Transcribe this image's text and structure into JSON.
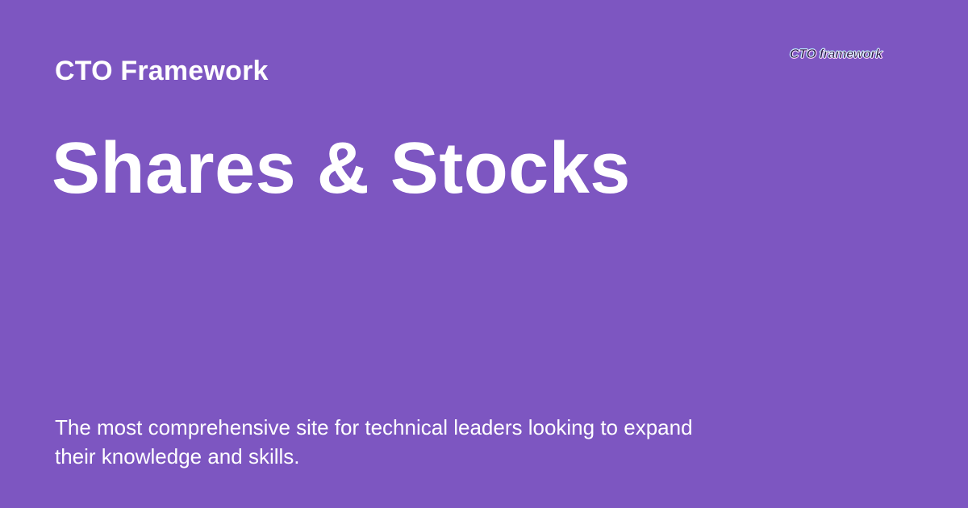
{
  "header": {
    "site_name": "CTO Framework",
    "logo_text": "CTO framework"
  },
  "main": {
    "title": "Shares & Stocks",
    "description": "The most comprehensive site for technical leaders looking to expand their knowledge and skills."
  },
  "colors": {
    "background": "#7d56c1",
    "text": "#ffffff",
    "logo_text": "#2b1a4f"
  }
}
